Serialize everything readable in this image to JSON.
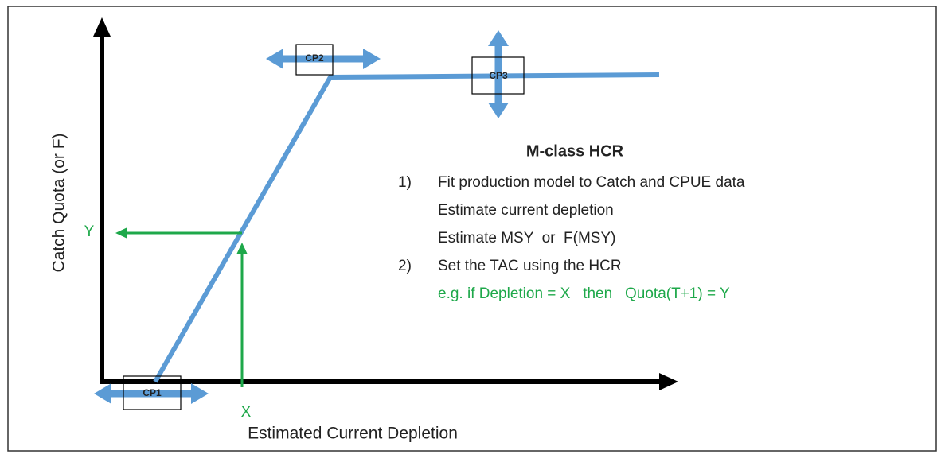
{
  "axes": {
    "y_label": "Catch Quota (or F)",
    "x_label": "Estimated Current Depletion"
  },
  "control_points": [
    {
      "label": "CP1"
    },
    {
      "label": "CP2"
    },
    {
      "label": "CP3"
    }
  ],
  "example_markers": {
    "x_label": "X",
    "y_label": "Y"
  },
  "panel": {
    "title": "M-class HCR",
    "steps": [
      {
        "number": "1)",
        "lines": [
          "Fit production model to Catch and CPUE data",
          "Estimate current depletion",
          "Estimate MSY  or  F(MSY)"
        ]
      },
      {
        "number": "2)",
        "lines": [
          "Set the TAC using the HCR"
        ],
        "example": "e.g. if Depletion = X   then   Quota(T+1) = Y"
      }
    ]
  }
}
